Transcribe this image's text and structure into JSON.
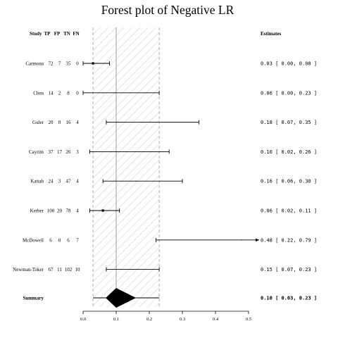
{
  "chart_data": {
    "type": "forest",
    "title": "Forest plot of Negative LR",
    "columns": [
      "Study",
      "TP",
      "FP",
      "TN",
      "FN"
    ],
    "estimates_header": "Estimates",
    "studies": [
      {
        "name": "Carmona",
        "tp": "72",
        "fp": "7",
        "tn": "35",
        "fn": "0",
        "est": 0.03,
        "lo": 0.0,
        "hi": 0.08,
        "text": "0.03 [ 0.00, 0.08 ]"
      },
      {
        "name": "Chen",
        "tp": "14",
        "fp": "2",
        "tn": "8",
        "fn": "0",
        "est": 0.06,
        "lo": 0.0,
        "hi": 0.23,
        "text": "0.06 [ 0.00, 0.23 ]"
      },
      {
        "name": "Guler",
        "tp": "20",
        "fp": "0",
        "tn": "16",
        "fn": "4",
        "est": 0.18,
        "lo": 0.07,
        "hi": 0.35,
        "text": "0.18 [ 0.07, 0.35 ]"
      },
      {
        "name": "Cayrim",
        "tp": "37",
        "fp": "17",
        "tn": "26",
        "fn": "3",
        "est": 0.1,
        "lo": 0.02,
        "hi": 0.26,
        "text": "0.10 [ 0.02, 0.26 ]"
      },
      {
        "name": "Kattah",
        "tp": "24",
        "fp": "3",
        "tn": "47",
        "fn": "4",
        "est": 0.16,
        "lo": 0.06,
        "hi": 0.3,
        "text": "0.16 [ 0.06, 0.30 ]"
      },
      {
        "name": "Kerber",
        "tp": "100",
        "fp": "20",
        "tn": "78",
        "fn": "4",
        "est": 0.06,
        "lo": 0.02,
        "hi": 0.11,
        "text": "0.06 [ 0.02, 0.11 ]"
      },
      {
        "name": "McDowell",
        "tp": "6",
        "fp": "0",
        "tn": "6",
        "fn": "7",
        "est": 0.48,
        "lo": 0.22,
        "hi": 0.79,
        "text": "0.48 [ 0.22, 0.79 ]"
      },
      {
        "name": "Newman-Toker",
        "tp": "67",
        "fp": "11",
        "tn": "102",
        "fn": "10",
        "est": 0.15,
        "lo": 0.07,
        "hi": 0.23,
        "text": "0.15 [ 0.07, 0.23 ]"
      }
    ],
    "summary": {
      "name": "Summary",
      "est": 0.1,
      "lo": 0.03,
      "hi": 0.23,
      "text": "0.10 [ 0.03, 0.23 ]"
    },
    "xticks": [
      "0.0",
      "0.1",
      "0.2",
      "0.3",
      "0.4",
      "0.5"
    ],
    "xlim": [
      0,
      0.5
    ],
    "reference_line": 0.1,
    "confidence_band": [
      0.03,
      0.23
    ],
    "colors": {
      "ink": "#000000",
      "band": "#aaaaaa"
    }
  }
}
